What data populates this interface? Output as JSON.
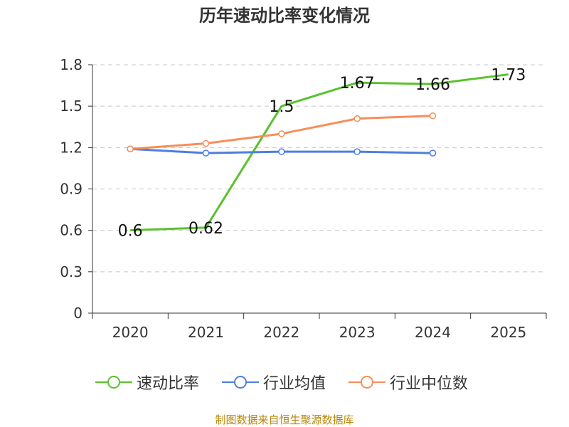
{
  "chart_data": {
    "type": "line",
    "title": "历年速动比率变化情况",
    "categories": [
      "2020",
      "2021",
      "2022",
      "2023",
      "2024",
      "2025"
    ],
    "y_ticks": [
      "0",
      "0.3",
      "0.6",
      "0.9",
      "1.2",
      "1.5",
      "1.8"
    ],
    "ylim": [
      0,
      1.8
    ],
    "grid": true,
    "legend_position": "bottom",
    "series": [
      {
        "name": "速动比率",
        "color": "#5ac12e",
        "values": [
          0.6,
          0.62,
          1.5,
          1.67,
          1.66,
          1.73
        ],
        "labels": [
          "0.6",
          "0.62",
          "1.5",
          "1.67",
          "1.66",
          "1.73"
        ],
        "show_labels": true,
        "show_points": false
      },
      {
        "name": "行业均值",
        "color": "#4d7fdc",
        "values": [
          1.19,
          1.16,
          1.17,
          1.17,
          1.16,
          null
        ],
        "show_labels": false,
        "show_points": true
      },
      {
        "name": "行业中位数",
        "color": "#f78e59",
        "values": [
          1.19,
          1.23,
          1.3,
          1.41,
          1.43,
          null
        ],
        "show_labels": false,
        "show_points": true
      }
    ]
  },
  "source": "制图数据来自恒生聚源数据库"
}
